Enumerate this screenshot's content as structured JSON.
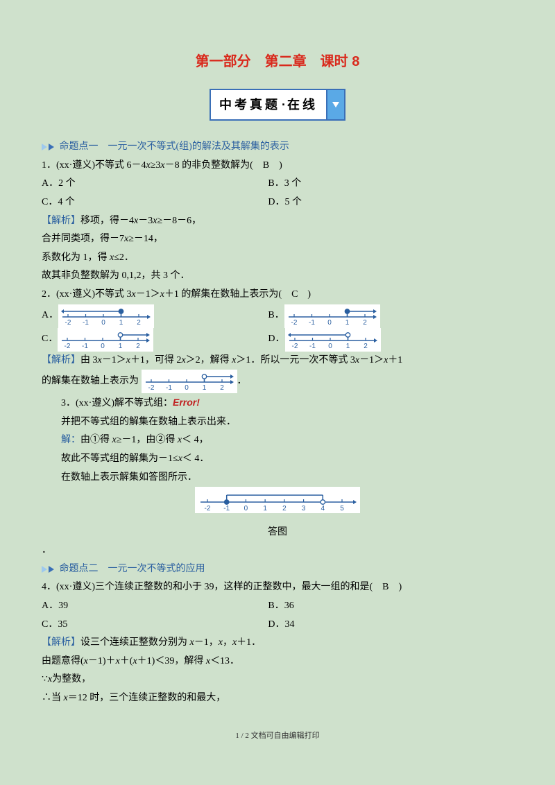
{
  "title": "第一部分　第二章　课时 8",
  "banner": "中考真题",
  "banner2": "在线",
  "topic1": "命题点一　一元一次不等式(组)的解法及其解集的表示",
  "q1": {
    "stem": "1．(xx·遵义)不等式 6－4",
    "stem2": "≥3",
    "stem3": "－8 的非负整数解为(　B　)",
    "a": "A．2 个",
    "b": "B．3 个",
    "c": "C．4 个",
    "d": "D．5 个",
    "tag": "【解析】",
    "s1p": "移项，得－4",
    "s1m": "－3",
    "s1s": "≥－8－6，",
    "s2p": "合并同类项，得－7",
    "s2s": "≥－14，",
    "s3p": "系数化为 1，得 ",
    "s3s": "≤2．",
    "s4": "故其非负整数解为 0,1,2，共 3 个．"
  },
  "q2": {
    "stem1": "2．(xx·遵义)不等式 3",
    "stem2": "－1＞",
    "stem3": "＋1 的解集在数轴上表示为(　C　)",
    "a": "A．",
    "b": "B．",
    "c": "C．",
    "d": "D．",
    "tag": "【解析】",
    "e1": "由 3",
    "e2": "－1＞",
    "e3": "＋1，可得 2",
    "e4": "＞2，解得 ",
    "e5": "＞1．所以一元一次不等式 3",
    "e6": "－1＞",
    "e7": "＋1",
    "e8": "的解集在数轴上表示为",
    "period": "．"
  },
  "q3": {
    "stem": "3．(xx·遵义)解不等式组：",
    "err": "Error!",
    "l1": "并把不等式组的解集在数轴上表示出来．",
    "sol": "解：",
    "s1a": "由①得 ",
    "s1b": "≥－1，由②得 ",
    "s1c": "＜ 4，",
    "s2a": "故此不等式组的解集为－1≤",
    "s2b": "＜ 4．",
    "s3": "在数轴上表示解集如答图所示．",
    "cap": "答图"
  },
  "dot": "．",
  "topic2": "命题点二　一元一次不等式的应用",
  "q4": {
    "stem": "4．(xx·遵义)三个连续正整数的和小于 39，这样的正整数中，最大一组的和是(　B　)",
    "a": "A．39",
    "b": "B．36",
    "c": "C．35",
    "d": "D．34",
    "tag": "【解析】",
    "s1a": "设三个连续正整数分别为 ",
    "s1b": "－1，",
    "s1c": "，",
    "s1d": "＋1．",
    "s2a": "由题意得(",
    "s2b": "－1)＋",
    "s2c": "＋(",
    "s2d": "＋1)＜39，解得 ",
    "s2e": "＜13．",
    "s3a": "∵",
    "s3b": "为整数，",
    "s4a": "∴当 ",
    "s4b": "＝12 时，三个连续正整数的和最大，"
  },
  "footer": "1 / 2 文档可自由编辑打印",
  "nl": {
    "ticks": [
      "-2",
      "-1",
      "0",
      "1",
      "2"
    ],
    "ticks_long": [
      "-2",
      "-1",
      "0",
      "1",
      "2",
      "3",
      "4",
      "5"
    ],
    "axis_color": "#2a5fa0",
    "open_fill": "#ffffff",
    "closed_fill": "#2a5fa0",
    "ray_color": "#2a5fa0",
    "font_size": 10
  }
}
